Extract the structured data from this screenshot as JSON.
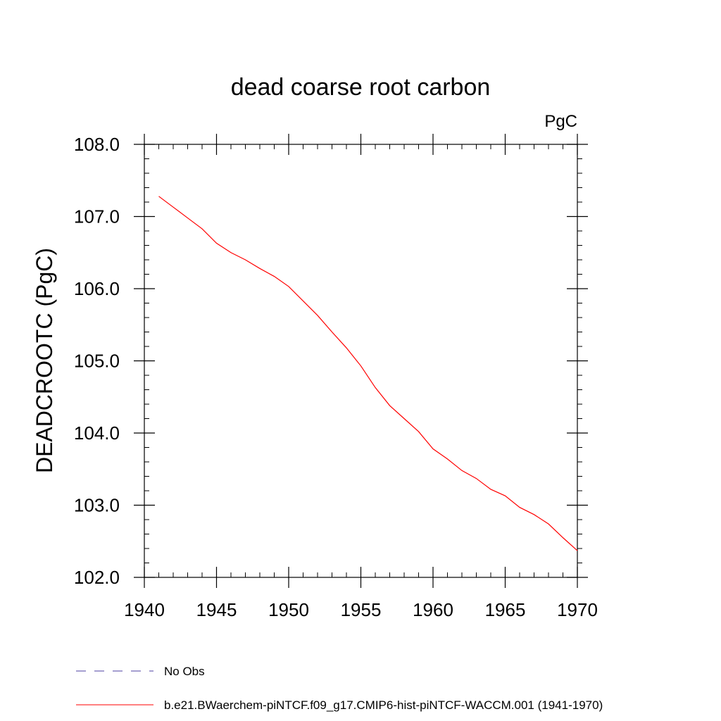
{
  "chart_data": {
    "type": "line",
    "title": "dead coarse root carbon",
    "units_label": "PgC",
    "ylabel": "DEADCROOTC  (PgC)",
    "xlabel": "",
    "xlim": [
      1940,
      1970
    ],
    "ylim": [
      102.0,
      108.0
    ],
    "x_ticks": [
      "1940",
      "1945",
      "1950",
      "1955",
      "1960",
      "1965",
      "1970"
    ],
    "y_ticks": [
      "102.0",
      "103.0",
      "104.0",
      "105.0",
      "106.0",
      "107.0",
      "108.0"
    ],
    "grid": false,
    "series": [
      {
        "name": "b.e21.BWaerchem-piNTCF.f09_g17.CMIP6-hist-piNTCF-WACCM.001 (1941-1970)",
        "color": "#ff0000",
        "dash": "solid",
        "x": [
          1941,
          1942,
          1943,
          1944,
          1945,
          1946,
          1947,
          1948,
          1949,
          1950,
          1951,
          1952,
          1953,
          1954,
          1955,
          1956,
          1957,
          1958,
          1959,
          1960,
          1961,
          1962,
          1963,
          1964,
          1965,
          1966,
          1967,
          1968,
          1969,
          1970
        ],
        "y": [
          107.28,
          107.13,
          106.98,
          106.83,
          106.63,
          106.5,
          106.4,
          106.28,
          106.17,
          106.03,
          105.83,
          105.63,
          105.4,
          105.18,
          104.93,
          104.63,
          104.38,
          104.2,
          104.02,
          103.78,
          103.64,
          103.48,
          103.37,
          103.22,
          103.13,
          102.97,
          102.87,
          102.74,
          102.55,
          102.37
        ]
      }
    ],
    "legend": [
      {
        "label": "No Obs",
        "color": "#4b3fa0",
        "dash": "dashed"
      },
      {
        "label": "b.e21.BWaerchem-piNTCF.f09_g17.CMIP6-hist-piNTCF-WACCM.001 (1941-1970)",
        "color": "#ff0000",
        "dash": "solid"
      }
    ]
  }
}
